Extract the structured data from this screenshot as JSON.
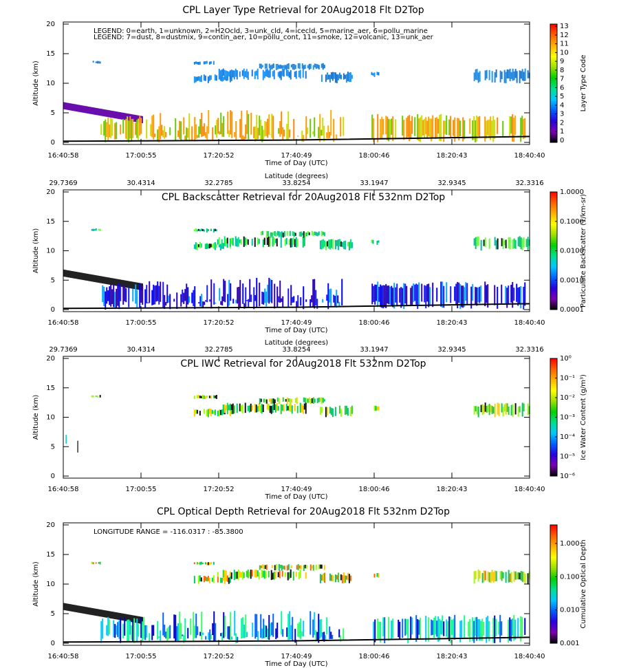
{
  "chart_data": [
    {
      "type": "curtain",
      "title": "CPL Layer Type Retrieval for 20Aug2018 Flt D2Top",
      "xlabel": "Time of Day (UTC)",
      "ylabel": "Altitude (km)",
      "xticks": [
        "16:40:58",
        "17:00:55",
        "17:20:52",
        "17:40:49",
        "18:00:46",
        "18:20:43",
        "18:40:40"
      ],
      "ylim": [
        0,
        20
      ],
      "yticks": [
        0,
        5,
        10,
        15,
        20
      ],
      "colorbar_label": "Layer Type Code",
      "cscale": "linear",
      "clim": [
        -0.25,
        13.25
      ],
      "cticks": [
        0,
        1,
        2,
        3,
        4,
        5,
        6,
        7,
        8,
        9,
        10,
        11,
        12,
        13
      ],
      "colormap": [
        "#000000",
        "#7a00b0",
        "#2a00e0",
        "#0060ff",
        "#00c8ff",
        "#00e090",
        "#00d000",
        "#a0e000",
        "#ffff00",
        "#ffb000",
        "#ff6000",
        "#ff0000"
      ],
      "annotations": [
        "LEGEND: 0=earth, 1=unknown, 2=H2Ocld, 3=unk_cld, 4=icecld, 5=marine_aer, 6=pollu_marine",
        "LEGEND: 7=dust, 8=dustmix, 9=contin_aer, 10=pollu_cont, 11=smoke, 12=volcanic, 13=unk_aer"
      ]
    },
    {
      "type": "curtain",
      "title": "CPL Backscatter Retrieval for 20Aug2018 Flt 532nm D2Top",
      "xlabel": "Time of Day (UTC)",
      "ylabel": "Altitude (km)",
      "xticks": [
        "16:40:58",
        "17:00:55",
        "17:20:52",
        "17:40:49",
        "18:00:46",
        "18:20:43",
        "18:40:40"
      ],
      "top_xlabel": "Latitude (degrees)",
      "top_xticks": [
        29.7369,
        30.4314,
        32.2785,
        33.8254,
        33.1947,
        32.9345,
        32.3316
      ],
      "ylim": [
        0,
        20
      ],
      "yticks": [
        0,
        5,
        10,
        15,
        20
      ],
      "colorbar_label": "Particulate Backscatter (1/km-sr)",
      "cscale": "log",
      "clim": [
        0.0001,
        1
      ],
      "cticks": [
        {
          "value": 0.0001,
          "label": "0.0001"
        },
        {
          "value": 0.001,
          "label": "0.0010"
        },
        {
          "value": 0.01,
          "label": "0.0100"
        },
        {
          "value": 0.1,
          "label": "0.1000"
        },
        {
          "value": 1,
          "label": "1.0000"
        }
      ],
      "colormap": [
        "#000000",
        "#7a00b0",
        "#2a00e0",
        "#0060ff",
        "#00c8ff",
        "#00e090",
        "#00d000",
        "#a0e000",
        "#ffff00",
        "#ffb000",
        "#ff6000",
        "#ff0000"
      ]
    },
    {
      "type": "curtain",
      "title": "CPL IWC Retrieval for 20Aug2018 Flt 532nm D2Top",
      "xlabel": "Time of Day (UTC)",
      "ylabel": "Altitude (km)",
      "xticks": [
        "16:40:58",
        "17:00:55",
        "17:20:52",
        "17:40:49",
        "18:00:46",
        "18:20:43",
        "18:40:40"
      ],
      "top_xlabel": "Latitude (degrees)",
      "top_xticks": [
        29.7369,
        30.4314,
        32.2785,
        33.8254,
        33.1947,
        32.9345,
        32.3316
      ],
      "ylim": [
        0,
        20
      ],
      "yticks": [
        0,
        5,
        10,
        15,
        20
      ],
      "colorbar_label": "Ice Water Content (g/m³)",
      "cscale": "log",
      "clim": [
        1e-06,
        1
      ],
      "cticks": [
        {
          "value": 1e-06,
          "label": "10⁻⁶"
        },
        {
          "value": 1e-05,
          "label": "10⁻⁵"
        },
        {
          "value": 0.0001,
          "label": "10⁻⁴"
        },
        {
          "value": 0.001,
          "label": "10⁻³"
        },
        {
          "value": 0.01,
          "label": "10⁻²"
        },
        {
          "value": 0.1,
          "label": "10⁻¹"
        },
        {
          "value": 1,
          "label": "10⁰"
        }
      ],
      "colormap": [
        "#000000",
        "#7a00b0",
        "#2a00e0",
        "#0060ff",
        "#00c8ff",
        "#00e090",
        "#00d000",
        "#a0e000",
        "#ffff00",
        "#ffb000",
        "#ff6000",
        "#ff0000"
      ]
    },
    {
      "type": "curtain",
      "title": "CPL Optical Depth Retrieval for 20Aug2018 Flt 532nm D2Top",
      "xlabel": "Time of Day (UTC)",
      "ylabel": "Altitude (km)",
      "xticks": [
        "16:40:58",
        "17:00:55",
        "17:20:52",
        "17:40:49",
        "18:00:46",
        "18:20:43",
        "18:40:40"
      ],
      "ylim": [
        0,
        20
      ],
      "yticks": [
        0,
        5,
        10,
        15,
        20
      ],
      "colorbar_label": "Cumulative Optical Depth",
      "cscale": "log",
      "clim": [
        0.001,
        3.6
      ],
      "cticks": [
        {
          "value": 0.001,
          "label": "0.001"
        },
        {
          "value": 0.01,
          "label": "0.010"
        },
        {
          "value": 0.1,
          "label": "0.100"
        },
        {
          "value": 1,
          "label": "1.000"
        }
      ],
      "colormap": [
        "#000000",
        "#7a00b0",
        "#2a00e0",
        "#0060ff",
        "#00c8ff",
        "#00e090",
        "#00d000",
        "#a0e000",
        "#ffff00",
        "#ffb000",
        "#ff6000",
        "#ff0000"
      ],
      "annotations": [
        "LONGITUDE RANGE =   -116.0317 :  -85.3800"
      ]
    }
  ]
}
